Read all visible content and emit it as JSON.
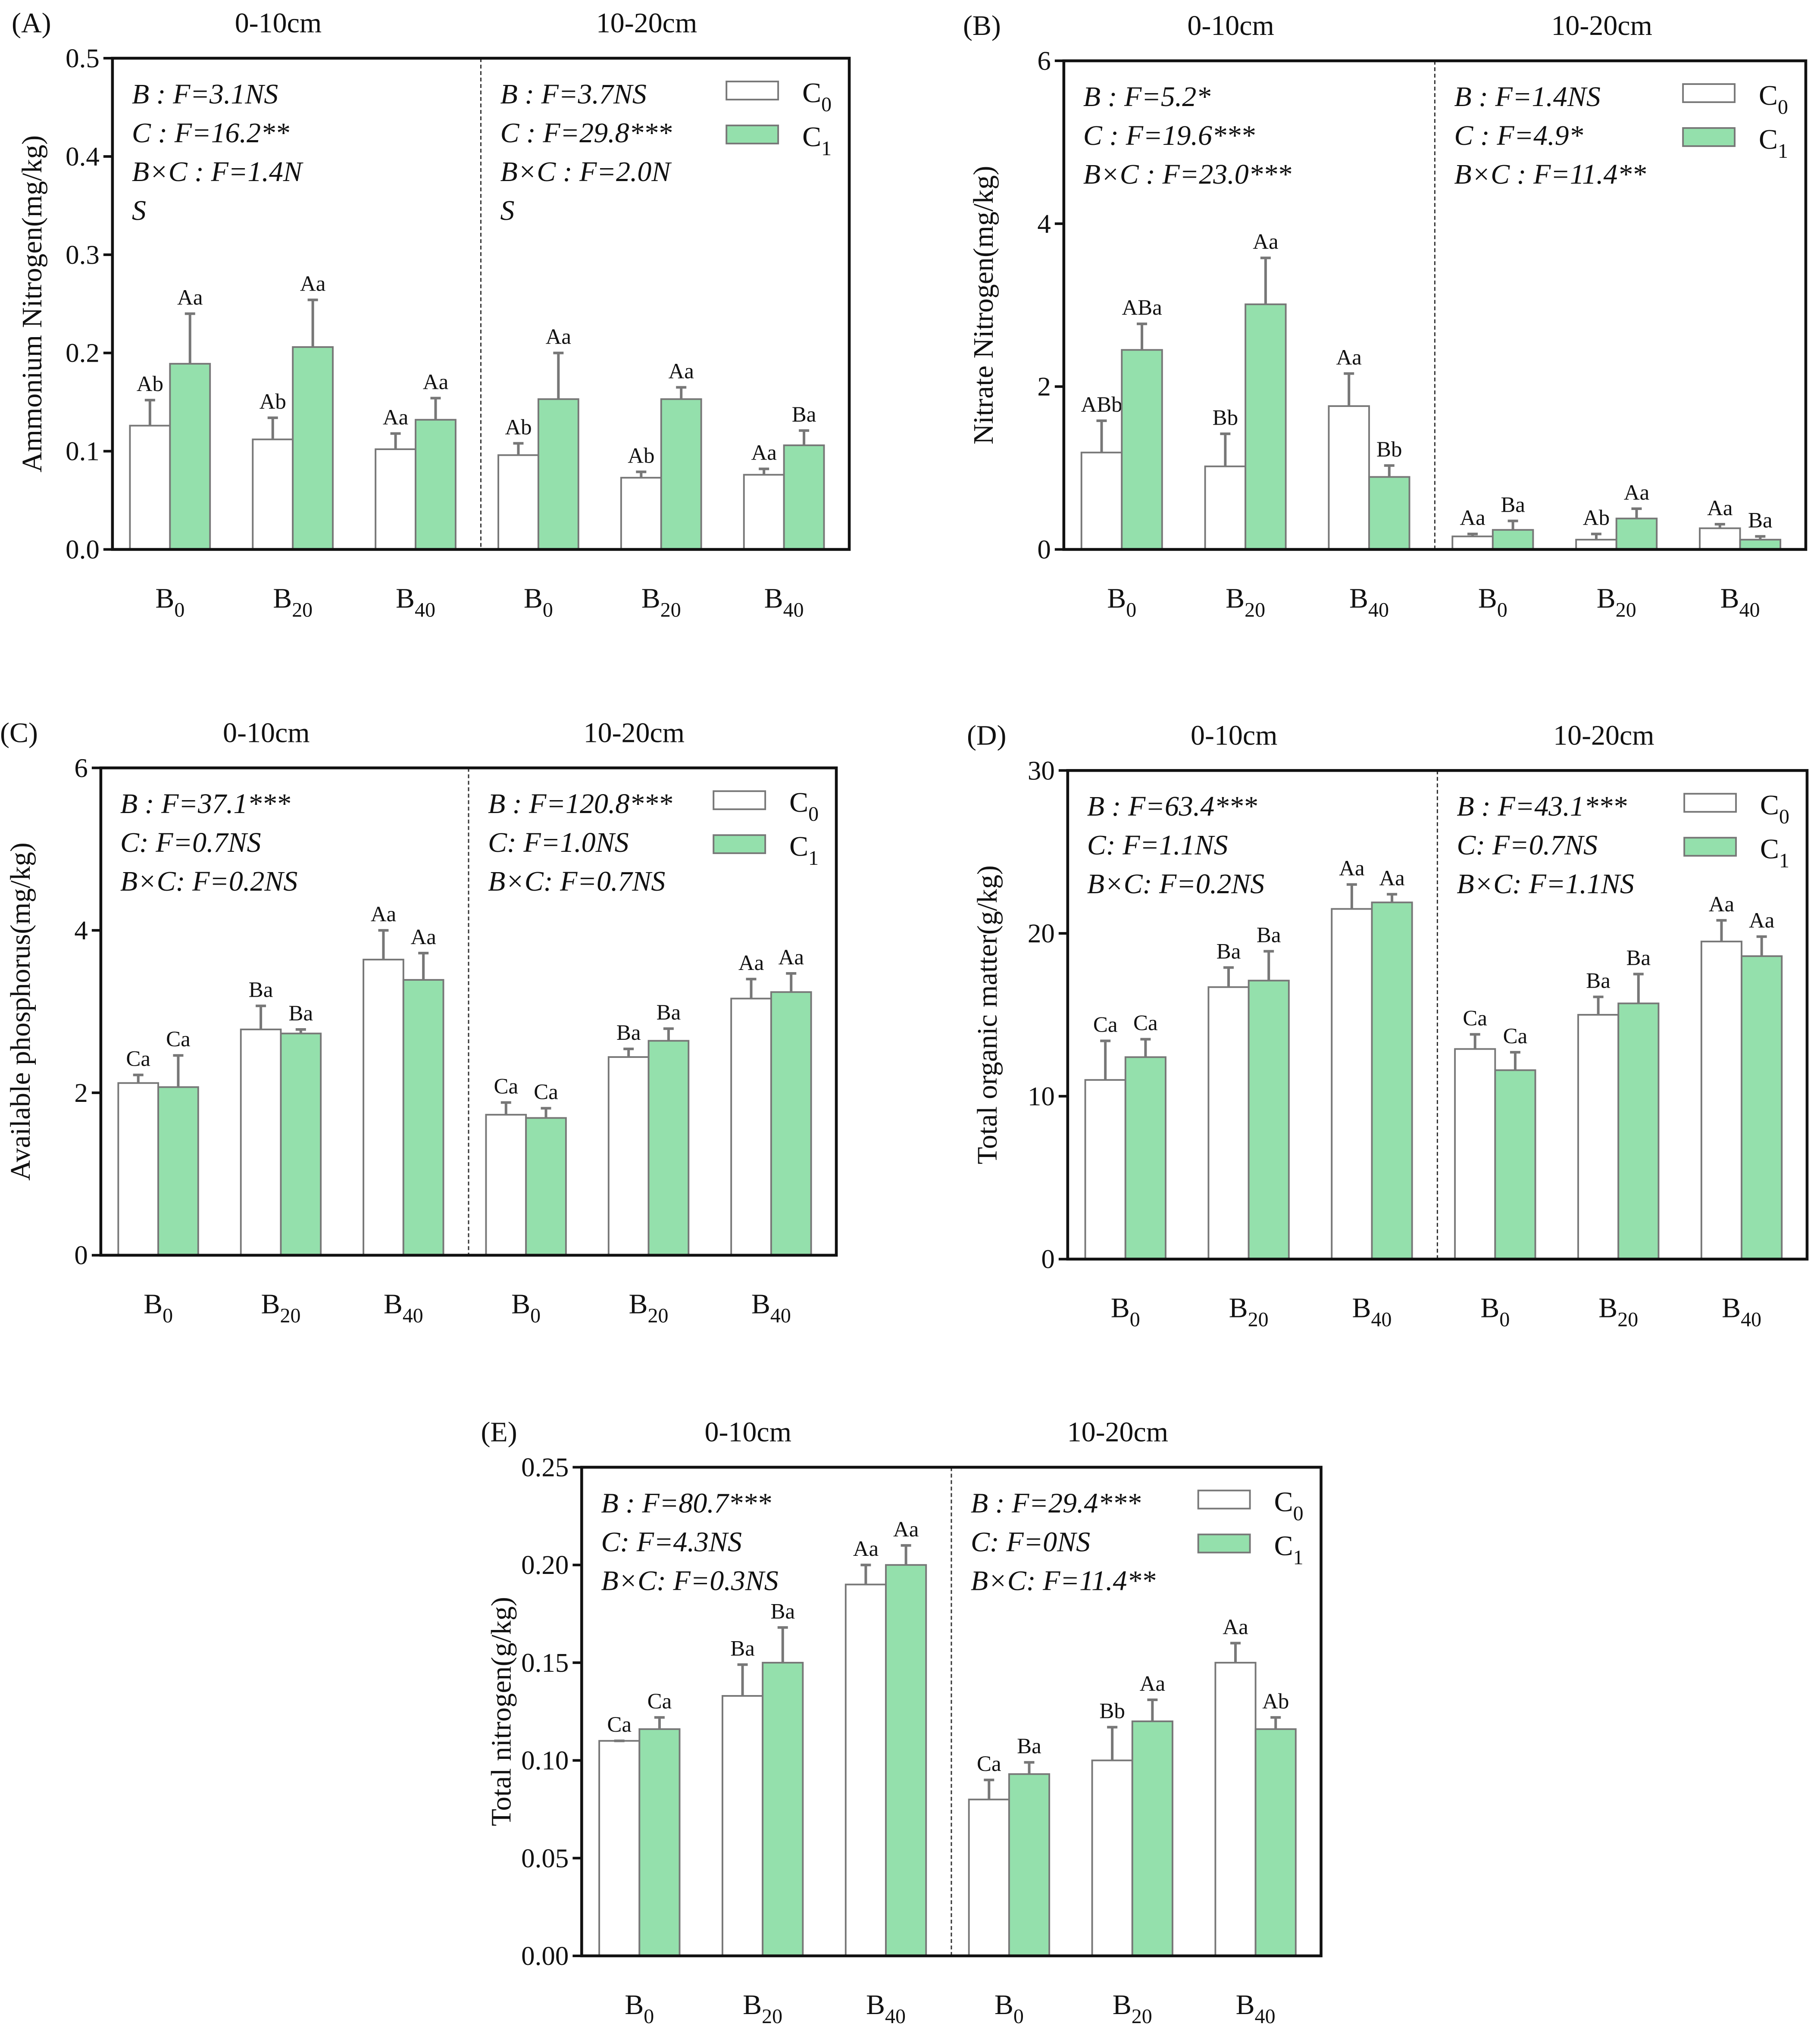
{
  "colors": {
    "c0_fill": "#ffffff",
    "c1_fill": "#94e0ac",
    "bar_stroke": "#777777",
    "err": "#777777"
  },
  "legend": [
    {
      "base": "C",
      "sub": "0"
    },
    {
      "base": "C",
      "sub": "1"
    }
  ],
  "chart_data": [
    {
      "type": "bar",
      "panel_label": "(A)",
      "ylabel": "Ammonium Nitrogen(mg/kg)",
      "ylim": [
        0,
        0.5
      ],
      "yticks": [
        0.0,
        0.1,
        0.2,
        0.3,
        0.4,
        0.5
      ],
      "tick_decimals": 1,
      "categories": [
        "B0",
        "B20",
        "B40"
      ],
      "depths": [
        {
          "title": "0-10cm",
          "stats": [
            "B : F=3.1NS",
            "C  : F=16.2**",
            "B×C : F=1.4N",
            "S"
          ],
          "series": [
            {
              "name": "C0",
              "values": [
                0.126,
                0.112,
                0.102
              ],
              "err_top": [
                0.152,
                0.134,
                0.118
              ],
              "labels": [
                "Ab",
                "Ab",
                "Aa"
              ]
            },
            {
              "name": "C1",
              "values": [
                0.189,
                0.206,
                0.132
              ],
              "err_top": [
                0.24,
                0.254,
                0.154
              ],
              "labels": [
                "Aa",
                "Aa",
                "Aa"
              ]
            }
          ]
        },
        {
          "title": "10-20cm",
          "stats": [
            "B : F=3.7NS",
            "C : F=29.8***",
            "B×C : F=2.0N",
            "S"
          ],
          "series": [
            {
              "name": "C0",
              "values": [
                0.096,
                0.073,
                0.076
              ],
              "err_top": [
                0.108,
                0.079,
                0.082
              ],
              "labels": [
                "Ab",
                "Ab",
                "Aa"
              ]
            },
            {
              "name": "C1",
              "values": [
                0.153,
                0.153,
                0.106
              ],
              "err_top": [
                0.2,
                0.165,
                0.121
              ],
              "labels": [
                "Aa",
                "Aa",
                "Ba"
              ]
            }
          ]
        }
      ]
    },
    {
      "type": "bar",
      "panel_label": "(B)",
      "ylabel": "Nitrate Nitrogen(mg/kg)",
      "ylim": [
        0,
        6
      ],
      "yticks": [
        0,
        2,
        4,
        6
      ],
      "tick_decimals": 0,
      "categories": [
        "B0",
        "B20",
        "B40"
      ],
      "depths": [
        {
          "title": "0-10cm",
          "stats": [
            "B : F=5.2*",
            "C : F=19.6***",
            "B×C : F=23.0***"
          ],
          "series": [
            {
              "name": "C0",
              "values": [
                1.19,
                1.02,
                1.76
              ],
              "err_top": [
                1.58,
                1.42,
                2.16
              ],
              "labels": [
                "ABb",
                "Bb",
                "Aa"
              ]
            },
            {
              "name": "C1",
              "values": [
                2.45,
                3.01,
                0.89
              ],
              "err_top": [
                2.77,
                3.58,
                1.03
              ],
              "labels": [
                "ABa",
                "Aa",
                "Bb"
              ]
            }
          ]
        },
        {
          "title": "10-20cm",
          "stats": [
            "B : F=1.4NS",
            "C : F=4.9*",
            "B×C : F=11.4**"
          ],
          "series": [
            {
              "name": "C0",
              "values": [
                0.16,
                0.12,
                0.26
              ],
              "err_top": [
                0.19,
                0.19,
                0.31
              ],
              "labels": [
                "Aa",
                "Ab",
                "Aa"
              ]
            },
            {
              "name": "C1",
              "values": [
                0.24,
                0.38,
                0.12
              ],
              "err_top": [
                0.35,
                0.5,
                0.16
              ],
              "labels": [
                "Ba",
                "Aa",
                "Ba"
              ]
            }
          ]
        }
      ]
    },
    {
      "type": "bar",
      "panel_label": "(C)",
      "ylabel": "Available phosphorus(mg/kg)",
      "ylim": [
        0,
        6
      ],
      "yticks": [
        0,
        2,
        4,
        6
      ],
      "tick_decimals": 0,
      "categories": [
        "B0",
        "B20",
        "B40"
      ],
      "depths": [
        {
          "title": "0-10cm",
          "stats": [
            "B : F=37.1***",
            "C: F=0.7NS",
            "B×C: F=0.2NS"
          ],
          "series": [
            {
              "name": "C0",
              "values": [
                2.12,
                2.78,
                3.64
              ],
              "err_top": [
                2.22,
                3.07,
                4.0
              ],
              "labels": [
                "Ca",
                "Ba",
                "Aa"
              ]
            },
            {
              "name": "C1",
              "values": [
                2.07,
                2.73,
                3.39
              ],
              "err_top": [
                2.46,
                2.78,
                3.72
              ],
              "labels": [
                "Ca",
                "Ba",
                "Aa"
              ]
            }
          ]
        },
        {
          "title": "10-20cm",
          "stats": [
            "B : F=120.8***",
            "C: F=1.0NS",
            "B×C: F=0.7NS"
          ],
          "series": [
            {
              "name": "C0",
              "values": [
                1.73,
                2.44,
                3.16
              ],
              "err_top": [
                1.88,
                2.54,
                3.4
              ],
              "labels": [
                "Ca",
                "Ba",
                "Aa"
              ]
            },
            {
              "name": "C1",
              "values": [
                1.69,
                2.64,
                3.24
              ],
              "err_top": [
                1.81,
                2.79,
                3.47
              ],
              "labels": [
                "Ca",
                "Ba",
                "Aa"
              ]
            }
          ]
        }
      ]
    },
    {
      "type": "bar",
      "panel_label": "(D)",
      "ylabel": "Total organic matter(g/kg)",
      "ylim": [
        0,
        30
      ],
      "yticks": [
        0,
        10,
        20,
        30
      ],
      "tick_decimals": 0,
      "categories": [
        "B0",
        "B20",
        "B40"
      ],
      "depths": [
        {
          "title": "0-10cm",
          "stats": [
            "B : F=63.4***",
            "C: F=1.1NS",
            "B×C: F=0.2NS"
          ],
          "series": [
            {
              "name": "C0",
              "values": [
                11.0,
                16.7,
                21.5
              ],
              "err_top": [
                13.4,
                17.9,
                23.0
              ],
              "labels": [
                "Ca",
                "Ba",
                "Aa"
              ]
            },
            {
              "name": "C1",
              "values": [
                12.4,
                17.1,
                21.9
              ],
              "err_top": [
                13.5,
                18.9,
                22.4
              ],
              "labels": [
                "Ca",
                "Ba",
                "Aa"
              ]
            }
          ]
        },
        {
          "title": "10-20cm",
          "stats": [
            "B : F=43.1***",
            "C: F=0.7NS",
            "B×C: F=1.1NS"
          ],
          "series": [
            {
              "name": "C0",
              "values": [
                12.9,
                15.0,
                19.5
              ],
              "err_top": [
                13.8,
                16.1,
                20.8
              ],
              "labels": [
                "Ca",
                "Ba",
                "Aa"
              ]
            },
            {
              "name": "C1",
              "values": [
                11.6,
                15.7,
                18.6
              ],
              "err_top": [
                12.7,
                17.5,
                19.8
              ],
              "labels": [
                "Ca",
                "Ba",
                "Aa"
              ]
            }
          ]
        }
      ]
    },
    {
      "type": "bar",
      "panel_label": "(E)",
      "ylabel": "Total nitrogen(g/kg)",
      "ylim": [
        0,
        0.25
      ],
      "yticks": [
        0.0,
        0.05,
        0.1,
        0.15,
        0.2,
        0.25
      ],
      "tick_decimals": 2,
      "categories": [
        "B0",
        "B20",
        "B40"
      ],
      "depths": [
        {
          "title": "0-10cm",
          "stats": [
            "B : F=80.7***",
            "C: F=4.3NS",
            "B×C: F=0.3NS"
          ],
          "series": [
            {
              "name": "C0",
              "values": [
                0.11,
                0.133,
                0.19
              ],
              "err_top": [
                0.11,
                0.149,
                0.2
              ],
              "labels": [
                "Ca",
                "Ba",
                "Aa"
              ]
            },
            {
              "name": "C1",
              "values": [
                0.116,
                0.15,
                0.2
              ],
              "err_top": [
                0.122,
                0.168,
                0.21
              ],
              "labels": [
                "Ca",
                "Ba",
                "Aa"
              ]
            }
          ]
        },
        {
          "title": "10-20cm",
          "stats": [
            "B : F=29.4***",
            "C: F=0NS",
            "B×C: F=11.4**"
          ],
          "series": [
            {
              "name": "C0",
              "values": [
                0.08,
                0.1,
                0.15
              ],
              "err_top": [
                0.09,
                0.117,
                0.16
              ],
              "labels": [
                "Ca",
                "Bb",
                "Aa"
              ]
            },
            {
              "name": "C1",
              "values": [
                0.093,
                0.12,
                0.116
              ],
              "err_top": [
                0.099,
                0.131,
                0.122
              ],
              "labels": [
                "Ba",
                "Aa",
                "Ab"
              ]
            }
          ]
        }
      ]
    }
  ]
}
